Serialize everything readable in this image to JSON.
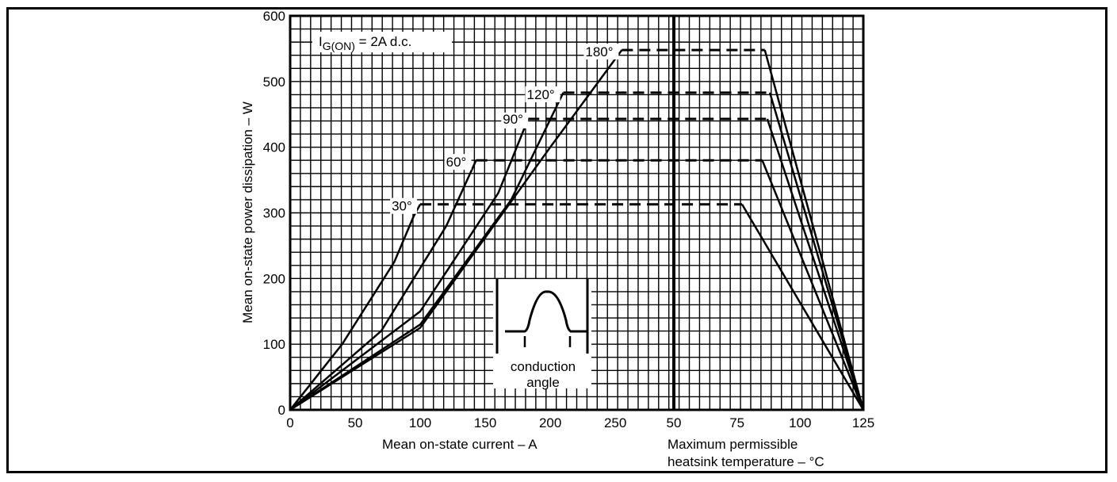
{
  "chart_data": {
    "type": "line",
    "annotation": {
      "main": "I",
      "sub": "G(ON)",
      "rest": " = 2A d.c."
    },
    "ylabel": "Mean on-state power dissipation – W",
    "ylim": [
      0,
      600
    ],
    "yticks": [
      "0",
      "100",
      "200",
      "300",
      "400",
      "500",
      "600"
    ],
    "left_panel": {
      "xlabel": "Mean on-state current – A",
      "xlim": [
        0,
        255
      ],
      "xticks": [
        "0",
        "50",
        "100",
        "150",
        "200",
        "250"
      ]
    },
    "right_panel": {
      "xlabel_line1": "Maximum permissible",
      "xlabel_line2": "heatsink temperature – °C",
      "xlim": [
        50,
        125
      ],
      "xticks": [
        "50",
        "75",
        "100",
        "125"
      ]
    },
    "inset": {
      "label_line1": "conduction",
      "label_line2": "angle"
    },
    "series": [
      {
        "name": "30°",
        "current": [
          0,
          40,
          80,
          95,
          100
        ],
        "power": [
          0,
          100,
          225,
          295,
          313
        ],
        "knee_temp": 77
      },
      {
        "name": "60°",
        "current": [
          0,
          70,
          120,
          143
        ],
        "power": [
          0,
          120,
          280,
          380
        ],
        "knee_temp": 85
      },
      {
        "name": "90°",
        "current": [
          0,
          100,
          160,
          183
        ],
        "power": [
          0,
          150,
          330,
          443
        ],
        "knee_temp": 87
      },
      {
        "name": "120°",
        "current": [
          0,
          100,
          170,
          210
        ],
        "power": [
          0,
          130,
          320,
          483
        ],
        "knee_temp": 88
      },
      {
        "name": "180°",
        "current": [
          0,
          100,
          200,
          255
        ],
        "power": [
          0,
          125,
          400,
          548
        ],
        "knee_temp": 86
      }
    ],
    "grid": true
  }
}
